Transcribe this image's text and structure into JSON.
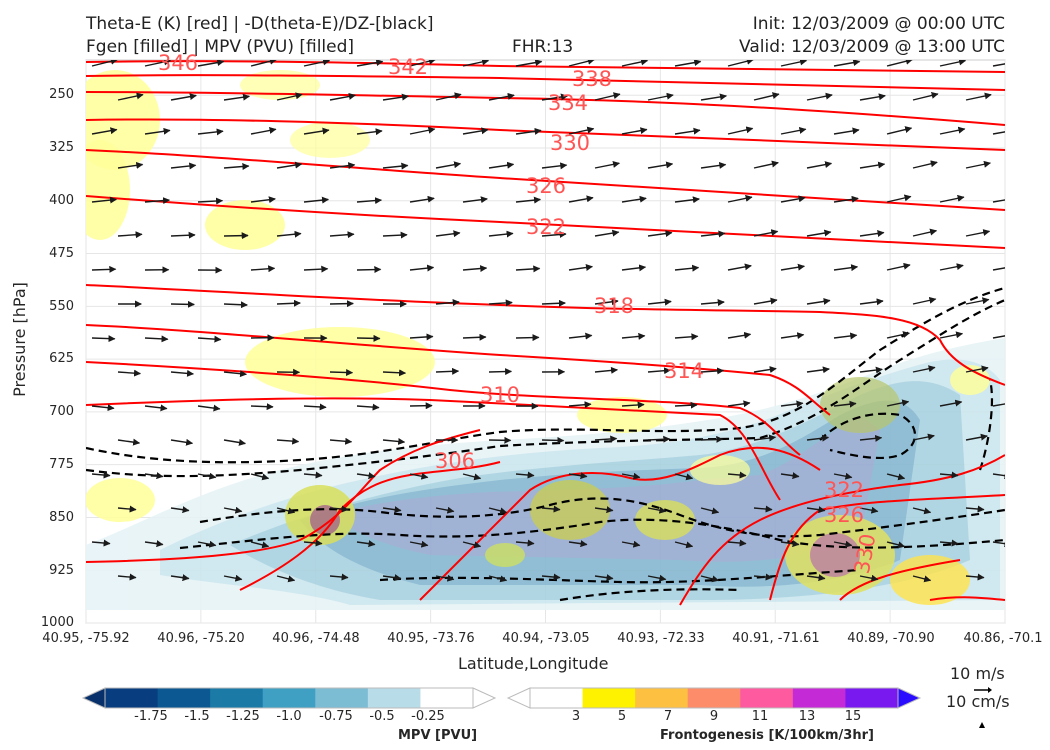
{
  "header": {
    "left_line1": "Theta-E (K) [red] | -D(theta-E)/DZ-[black]",
    "left_line2": "Fgen [filled] | MPV (PVU) [filled]",
    "center": "FHR:13",
    "right_line1": "Init: 12/03/2009 @ 00:00 UTC",
    "right_line2": "Valid: 12/03/2009 @ 13:00 UTC"
  },
  "chart_data": {
    "type": "contour",
    "xlabel": "Latitude,Longitude",
    "ylabel": "Pressure [hPa]",
    "y_axis": {
      "ticks": [
        250,
        325,
        400,
        475,
        550,
        625,
        700,
        775,
        850,
        925,
        1000
      ],
      "range": [
        1000,
        200
      ],
      "inverted": true
    },
    "x_axis": {
      "ticks": [
        "40.95, -75.92",
        "40.96, -75.20",
        "40.96, -74.48",
        "40.95, -73.76",
        "40.94, -73.05",
        "40.93, -72.33",
        "40.91, -71.61",
        "40.89, -70.90",
        "40.86, -70.1"
      ]
    },
    "theta_e_labels": [
      "346",
      "342",
      "338",
      "334",
      "330",
      "326",
      "322",
      "318",
      "314",
      "310",
      "306",
      "322",
      "326",
      "330"
    ],
    "theta_e_color": "#ff0000",
    "stability_color": "#000000",
    "wind_vector_color": "#1a1a1a",
    "grid": true
  },
  "colorbars": {
    "mpv": {
      "title": "MPV [PVU]",
      "ticks": [
        "-1.75",
        "-1.5",
        "-1.25",
        "-1.0",
        "-0.75",
        "-0.5",
        "-0.25"
      ],
      "colors": [
        "#08306b",
        "#083d7f",
        "#0b5892",
        "#1b7ba6",
        "#3fa0c3",
        "#7cbdd4",
        "#b9dde8",
        "#ffffff"
      ]
    },
    "fgen": {
      "title": "Frontogenesis [K/100km/3hr]",
      "ticks": [
        "3",
        "5",
        "7",
        "9",
        "11",
        "13",
        "15"
      ],
      "colors": [
        "#ffffff",
        "#fff200",
        "#fdc040",
        "#fd8c6a",
        "#fd5aa0",
        "#c42bd6",
        "#7a18f0",
        "#2a0cff"
      ]
    }
  },
  "reference_vectors": {
    "horizontal": "10 m/s",
    "vertical": "10 cm/s"
  }
}
